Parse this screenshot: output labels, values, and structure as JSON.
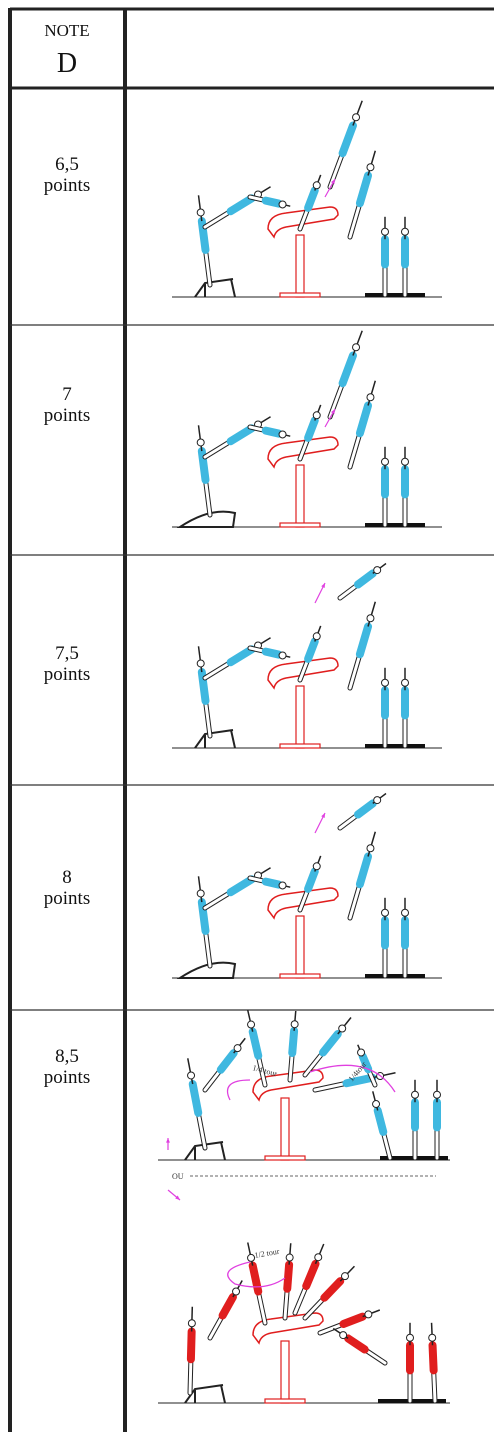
{
  "header": {
    "note": "NOTE",
    "grade": "D"
  },
  "rows": [
    {
      "score": "6,5",
      "unit": "points"
    },
    {
      "score": "7",
      "unit": "points"
    },
    {
      "score": "7,5",
      "unit": "points"
    },
    {
      "score": "8",
      "unit": "points"
    },
    {
      "score": "8,5",
      "unit": "points"
    }
  ],
  "annotations": {
    "quarter_turn_left": "1/4 tour",
    "quarter_turn_right": "1/4tour",
    "or": "OU",
    "half_turn": "1/2 tour"
  }
}
